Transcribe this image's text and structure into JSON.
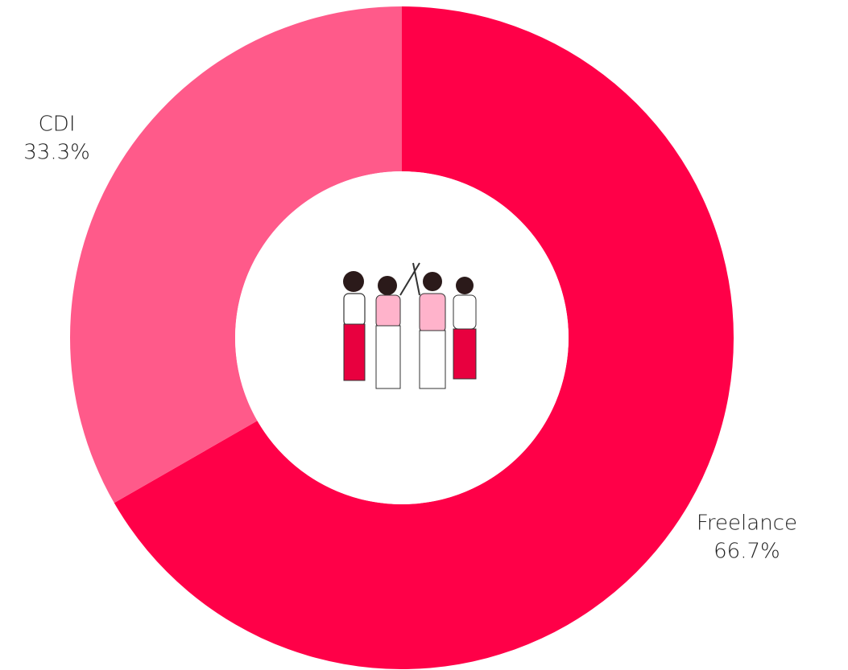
{
  "chart_data": {
    "type": "donut",
    "categories": [
      "Freelance",
      "CDI"
    ],
    "values": [
      66.7,
      33.3
    ],
    "value_labels": [
      "66.7%",
      "33.3%"
    ],
    "colors": [
      "#ff0048",
      "#ff5a8a"
    ]
  }
}
